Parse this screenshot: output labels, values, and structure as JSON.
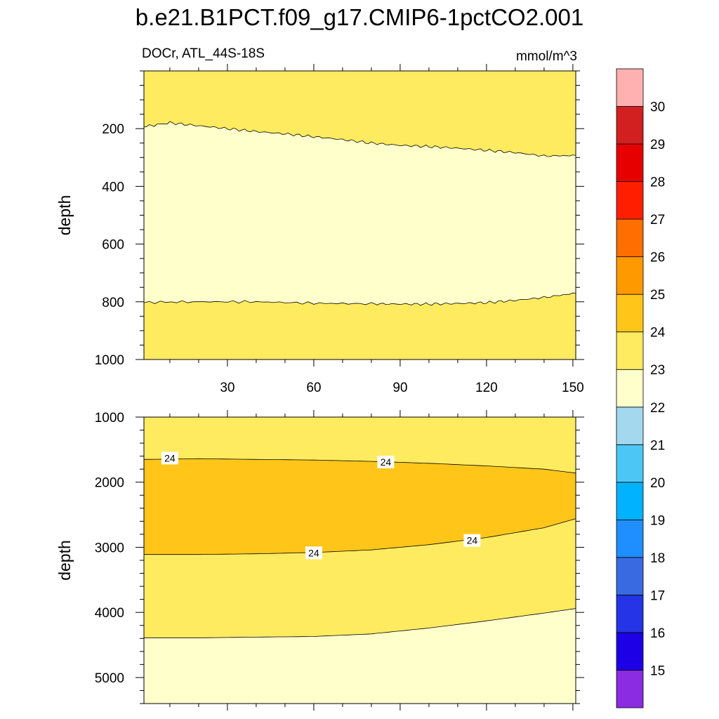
{
  "title": "b.e21.B1PCT.f09_g17.CMIP6-1pctCO2.001",
  "left_subtitle": "DOCr, ATL_44S-18S",
  "right_subtitle": "mmol/m^3",
  "colors": {
    "level_22_23": "#ffffcc",
    "level_23_24": "#ffeb60",
    "level_24_25": "#ffc619"
  },
  "chart_data": [
    {
      "type": "contour",
      "name": "upper-panel",
      "xlabel": "",
      "ylabel": "depth",
      "xlim": [
        1,
        151
      ],
      "ylim": [
        1000,
        0
      ],
      "xticks": [
        "30",
        "60",
        "90",
        "120",
        "150"
      ],
      "yticks": [
        "200",
        "400",
        "600",
        "800",
        "1000"
      ],
      "contour_levels": [
        23
      ],
      "regions": [
        {
          "range": "23-24",
          "description": "surface layer to ~200-295 m"
        },
        {
          "range": "22-23",
          "description": "intermediate layer ~200-800 m"
        },
        {
          "range": "23-24",
          "description": "below ~770-810 m to 1000 m"
        }
      ],
      "contour_23_top": {
        "x": [
          1,
          10,
          20,
          30,
          40,
          50,
          60,
          70,
          80,
          90,
          100,
          110,
          120,
          130,
          140,
          151
        ],
        "depth": [
          193,
          180,
          190,
          200,
          210,
          218,
          228,
          238,
          250,
          258,
          262,
          268,
          275,
          283,
          295,
          293
        ]
      },
      "contour_23_bottom": {
        "x": [
          1,
          20,
          40,
          60,
          80,
          90,
          100,
          110,
          120,
          130,
          140,
          151
        ],
        "depth": [
          802,
          800,
          800,
          805,
          807,
          808,
          808,
          806,
          803,
          795,
          785,
          770
        ]
      }
    },
    {
      "type": "contour",
      "name": "lower-panel",
      "xlabel": "",
      "ylabel": "depth",
      "xlim": [
        1,
        151
      ],
      "ylim": [
        5400,
        1000
      ],
      "xticks": [],
      "yticks": [
        "1000",
        "2000",
        "3000",
        "4000",
        "5000"
      ],
      "contour_levels": [
        23,
        24
      ],
      "contour_labels": [
        "24",
        "24",
        "24",
        "24"
      ],
      "regions": [
        {
          "range": "23-24",
          "description": "1000 m to ~1650 m"
        },
        {
          "range": "24-25",
          "description": "core ~1650-3100 m, thinning eastward"
        },
        {
          "range": "23-24",
          "description": "~3100 m to ~3900-4400 m"
        },
        {
          "range": "22-23",
          "description": "deep water below ~4400 m"
        }
      ],
      "contour_24_top": {
        "x": [
          1,
          20,
          40,
          60,
          80,
          100,
          120,
          140,
          151
        ],
        "depth": [
          1650,
          1640,
          1650,
          1660,
          1680,
          1710,
          1750,
          1800,
          1860
        ]
      },
      "contour_24_bottom": {
        "x": [
          1,
          20,
          40,
          60,
          80,
          100,
          120,
          140,
          151
        ],
        "depth": [
          3110,
          3110,
          3100,
          3080,
          3040,
          2960,
          2850,
          2700,
          2560
        ]
      },
      "contour_23": {
        "x": [
          1,
          20,
          40,
          60,
          80,
          100,
          120,
          140,
          151
        ],
        "depth": [
          4390,
          4390,
          4380,
          4370,
          4330,
          4240,
          4130,
          4010,
          3940
        ]
      }
    }
  ],
  "colorbar": {
    "colors": [
      "#8b2be2",
      "#1e00e6",
      "#2434e6",
      "#3a6ae2",
      "#1f8fff",
      "#00b2ff",
      "#4cc7f5",
      "#a4d8ef",
      "#ffffcc",
      "#ffeb60",
      "#ffc619",
      "#ff9900",
      "#ff6e00",
      "#ff1e00",
      "#e60000",
      "#d22020",
      "#ffb0b0"
    ],
    "labels": [
      "15",
      "16",
      "17",
      "18",
      "19",
      "20",
      "21",
      "22",
      "23",
      "24",
      "25",
      "26",
      "27",
      "28",
      "29",
      "30"
    ]
  }
}
